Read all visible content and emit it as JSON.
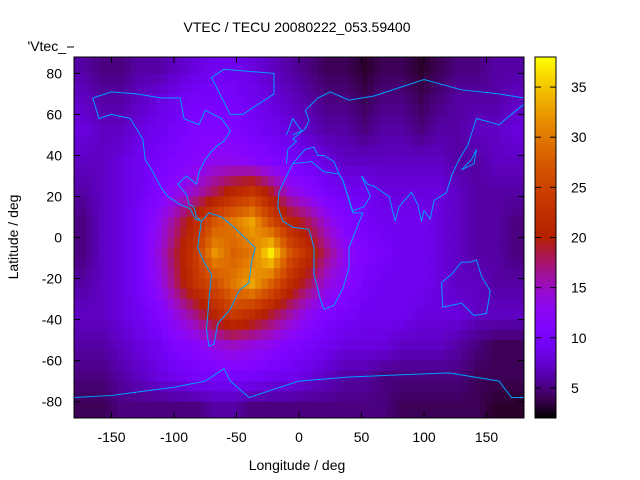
{
  "chart_data": {
    "type": "heatmap",
    "title": "VTEC / TECU 20080222_053.59400",
    "xlabel": "Longitude / deg",
    "ylabel": "Latitude / deg",
    "key_label": "'Vtec_",
    "xlim": [
      -180,
      180
    ],
    "ylim": [
      -88,
      88
    ],
    "xticks": [
      -150,
      -100,
      -50,
      0,
      50,
      100,
      150
    ],
    "yticks": [
      80,
      60,
      40,
      20,
      0,
      -20,
      -40,
      -60,
      -80
    ],
    "colorbar": {
      "range": [
        2,
        38
      ],
      "ticks": [
        5,
        10,
        15,
        20,
        25,
        30,
        35
      ],
      "palette": "black-blue-purple-red-orange-yellow"
    },
    "grid_lon_centers": [
      -172.5,
      -157.5,
      -142.5,
      -127.5,
      -112.5,
      -97.5,
      -82.5,
      -67.5,
      -52.5,
      -37.5,
      -22.5,
      -7.5,
      7.5,
      22.5,
      37.5,
      52.5,
      67.5,
      82.5,
      97.5,
      112.5,
      127.5,
      142.5,
      157.5,
      172.5
    ],
    "grid_lat_centers": [
      82.5,
      67.5,
      52.5,
      37.5,
      22.5,
      7.5,
      -7.5,
      -22.5,
      -37.5,
      -52.5,
      -67.5,
      -82.5
    ],
    "values": [
      [
        6,
        5,
        5,
        6,
        6,
        7,
        8,
        9,
        9,
        8,
        7,
        6,
        5,
        4,
        4,
        3,
        4,
        4,
        3,
        4,
        5,
        5,
        6,
        6
      ],
      [
        7,
        6,
        6,
        7,
        8,
        9,
        10,
        10,
        10,
        9,
        8,
        7,
        6,
        5,
        5,
        4,
        5,
        5,
        4,
        5,
        6,
        6,
        6,
        7
      ],
      [
        8,
        7,
        7,
        8,
        9,
        10,
        11,
        11,
        11,
        10,
        9,
        8,
        7,
        6,
        6,
        5,
        6,
        6,
        5,
        6,
        6,
        7,
        7,
        8
      ],
      [
        7,
        7,
        8,
        9,
        10,
        11,
        12,
        13,
        13,
        12,
        11,
        10,
        9,
        8,
        7,
        7,
        7,
        7,
        7,
        7,
        6,
        6,
        7,
        7
      ],
      [
        6,
        7,
        8,
        9,
        11,
        13,
        15,
        18,
        21,
        23,
        19,
        14,
        12,
        10,
        9,
        9,
        8,
        8,
        8,
        8,
        7,
        6,
        6,
        6
      ],
      [
        5,
        7,
        8,
        10,
        13,
        17,
        22,
        27,
        30,
        33,
        26,
        21,
        18,
        14,
        11,
        10,
        9,
        9,
        9,
        8,
        7,
        6,
        6,
        5
      ],
      [
        5,
        7,
        8,
        10,
        14,
        19,
        24,
        32,
        28,
        30,
        37,
        27,
        22,
        17,
        13,
        11,
        10,
        9,
        9,
        8,
        7,
        6,
        6,
        5
      ],
      [
        6,
        7,
        8,
        10,
        13,
        18,
        23,
        26,
        30,
        33,
        28,
        22,
        18,
        14,
        12,
        10,
        9,
        9,
        9,
        8,
        7,
        7,
        6,
        6
      ],
      [
        7,
        7,
        8,
        9,
        11,
        14,
        17,
        21,
        24,
        22,
        19,
        16,
        13,
        11,
        10,
        9,
        9,
        9,
        8,
        8,
        8,
        7,
        7,
        7
      ],
      [
        6,
        6,
        7,
        8,
        9,
        11,
        12,
        14,
        15,
        14,
        13,
        11,
        10,
        9,
        8,
        8,
        8,
        7,
        7,
        7,
        6,
        5,
        4,
        4
      ],
      [
        5,
        5,
        6,
        7,
        8,
        9,
        10,
        10,
        10,
        10,
        9,
        9,
        8,
        7,
        6,
        6,
        5,
        5,
        5,
        5,
        5,
        4,
        4,
        4
      ],
      [
        4,
        4,
        5,
        5,
        5,
        5,
        5,
        6,
        6,
        5,
        5,
        5,
        5,
        5,
        5,
        5,
        5,
        4,
        4,
        4,
        4,
        4,
        3,
        3
      ]
    ]
  }
}
